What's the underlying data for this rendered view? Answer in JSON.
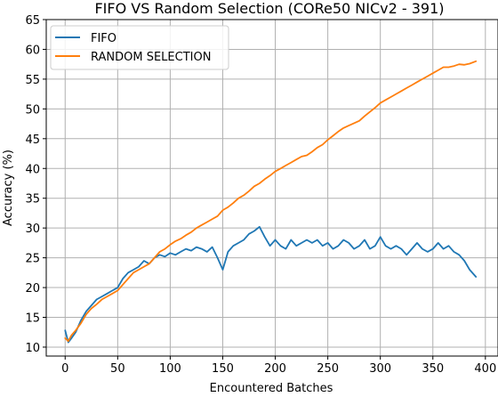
{
  "chart_data": {
    "type": "line",
    "title": "FIFO VS Random Selection (CORe50 NICv2 - 391)",
    "xlabel": "Encountered Batches",
    "ylabel": "Accuracy (%)",
    "xlim": [
      -18,
      412
    ],
    "ylim": [
      8.5,
      65
    ],
    "xticks": [
      0,
      50,
      100,
      150,
      200,
      250,
      300,
      350,
      400
    ],
    "yticks": [
      10,
      15,
      20,
      25,
      30,
      35,
      40,
      45,
      50,
      55,
      60,
      65
    ],
    "grid": true,
    "legend_position": "top-left",
    "series": [
      {
        "name": "FIFO",
        "color": "#1f77b4",
        "x": [
          0,
          3,
          6,
          10,
          15,
          20,
          25,
          30,
          35,
          40,
          45,
          50,
          55,
          60,
          65,
          70,
          75,
          80,
          85,
          90,
          95,
          100,
          105,
          110,
          115,
          120,
          125,
          130,
          135,
          140,
          145,
          150,
          155,
          160,
          165,
          170,
          175,
          180,
          185,
          190,
          195,
          200,
          205,
          210,
          215,
          220,
          225,
          230,
          235,
          240,
          245,
          250,
          255,
          260,
          265,
          270,
          275,
          280,
          285,
          290,
          295,
          300,
          305,
          310,
          315,
          320,
          325,
          330,
          335,
          340,
          345,
          350,
          355,
          360,
          365,
          370,
          375,
          380,
          385,
          391
        ],
        "y": [
          12.8,
          10.8,
          11.5,
          12.5,
          14.5,
          16.0,
          17.0,
          18.0,
          18.5,
          19.0,
          19.5,
          20.0,
          21.5,
          22.5,
          23.0,
          23.5,
          24.5,
          24.0,
          25.0,
          25.5,
          25.2,
          25.8,
          25.5,
          26.0,
          26.5,
          26.2,
          26.8,
          26.5,
          26.0,
          26.8,
          25.0,
          23.0,
          26.0,
          27.0,
          27.5,
          28.0,
          29.0,
          29.5,
          30.2,
          28.5,
          27.0,
          28.0,
          27.0,
          26.5,
          28.0,
          27.0,
          27.5,
          28.0,
          27.5,
          28.0,
          27.0,
          27.5,
          26.5,
          27.0,
          28.0,
          27.5,
          26.5,
          27.0,
          28.0,
          26.5,
          27.0,
          28.5,
          27.0,
          26.5,
          27.0,
          26.5,
          25.5,
          26.5,
          27.5,
          26.5,
          26.0,
          26.5,
          27.5,
          26.5,
          27.0,
          26.0,
          25.5,
          24.5,
          23.0,
          21.8
        ]
      },
      {
        "name": "RANDOM SELECTION",
        "color": "#ff7f0e",
        "x": [
          0,
          3,
          6,
          10,
          15,
          20,
          25,
          30,
          35,
          40,
          45,
          50,
          55,
          60,
          65,
          70,
          75,
          80,
          85,
          90,
          95,
          100,
          105,
          110,
          115,
          120,
          125,
          130,
          135,
          140,
          145,
          150,
          155,
          160,
          165,
          170,
          175,
          180,
          185,
          190,
          195,
          200,
          205,
          210,
          215,
          220,
          225,
          230,
          235,
          240,
          245,
          250,
          255,
          260,
          265,
          270,
          275,
          280,
          285,
          290,
          295,
          300,
          305,
          310,
          315,
          320,
          325,
          330,
          335,
          340,
          345,
          350,
          355,
          360,
          365,
          370,
          375,
          380,
          385,
          391
        ],
        "y": [
          11.5,
          11.0,
          12.0,
          12.8,
          14.0,
          15.5,
          16.5,
          17.2,
          18.0,
          18.5,
          19.0,
          19.5,
          20.5,
          21.5,
          22.5,
          23.0,
          23.5,
          24.0,
          25.0,
          26.0,
          26.5,
          27.2,
          27.8,
          28.2,
          28.8,
          29.3,
          30.0,
          30.5,
          31.0,
          31.5,
          32.0,
          33.0,
          33.5,
          34.2,
          35.0,
          35.5,
          36.2,
          37.0,
          37.5,
          38.2,
          38.8,
          39.5,
          40.0,
          40.5,
          41.0,
          41.5,
          42.0,
          42.2,
          42.8,
          43.5,
          44.0,
          44.8,
          45.5,
          46.2,
          46.8,
          47.2,
          47.6,
          48.0,
          48.8,
          49.5,
          50.2,
          51.0,
          51.5,
          52.0,
          52.5,
          53.0,
          53.5,
          54.0,
          54.5,
          55.0,
          55.5,
          56.0,
          56.5,
          57.0,
          57.0,
          57.2,
          57.5,
          57.4,
          57.6,
          58.0
        ]
      }
    ]
  }
}
